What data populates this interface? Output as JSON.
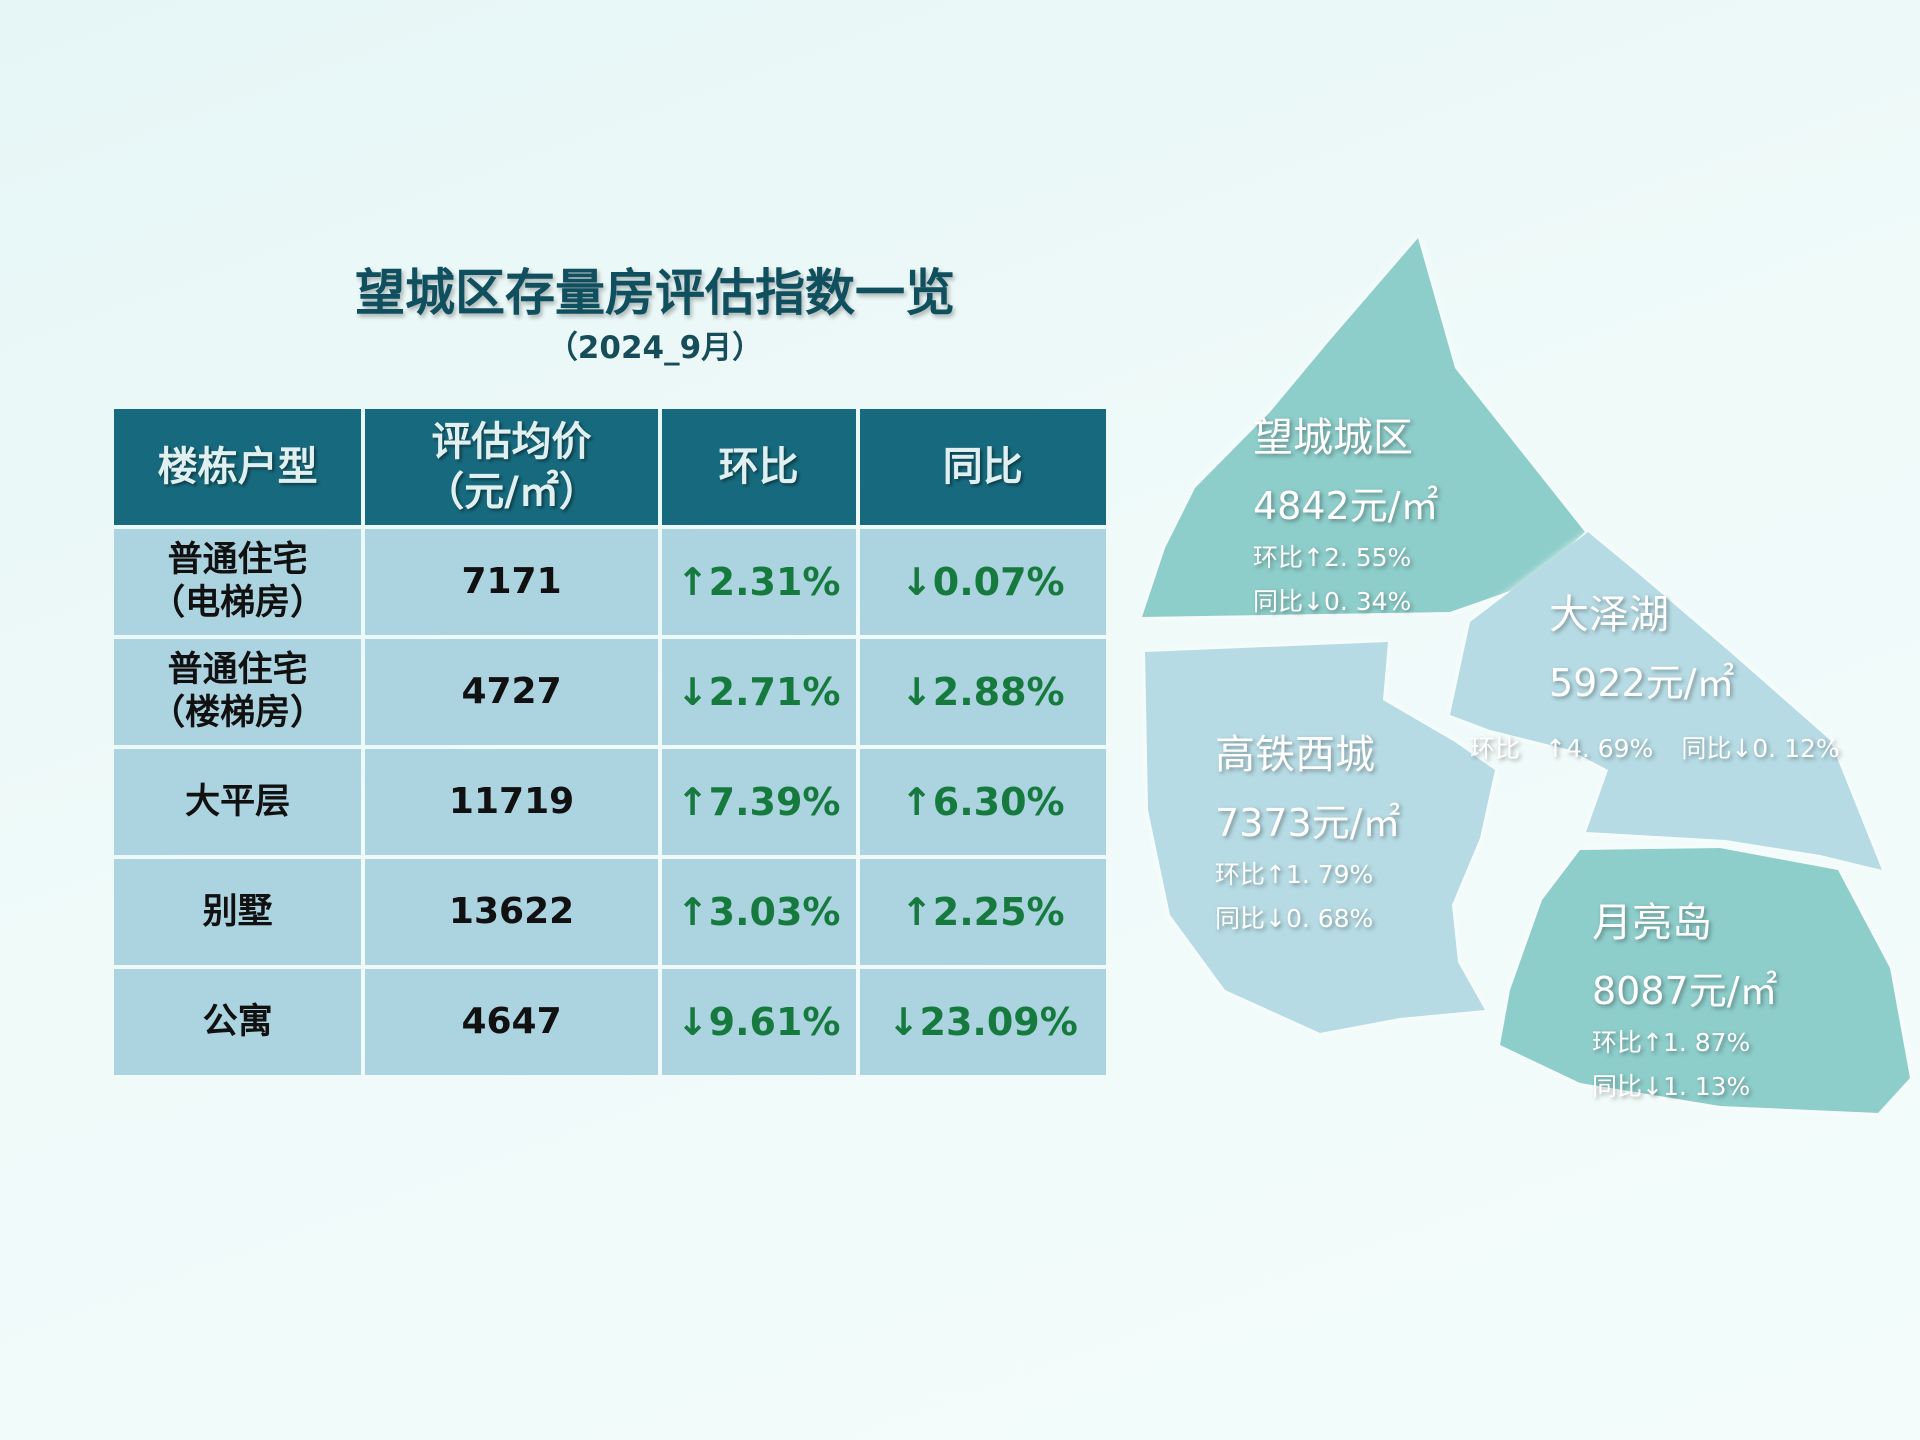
{
  "title": "望城区存量房评估指数一览",
  "subtitle": "（2024_9月）",
  "table": {
    "headers": [
      {
        "l1": "楼栋户型",
        "l2": ""
      },
      {
        "l1": "评估均价",
        "l2": "（元/㎡）"
      },
      {
        "l1": "环比",
        "l2": ""
      },
      {
        "l1": "同比",
        "l2": ""
      }
    ],
    "rows": [
      {
        "type_l1": "普通住宅",
        "type_l2": "（电梯房）",
        "price": "7171",
        "mom": "2.31%",
        "mom_dir": "up",
        "yoy": "0.07%",
        "yoy_dir": "down"
      },
      {
        "type_l1": "普通住宅",
        "type_l2": "（楼梯房）",
        "price": "4727",
        "mom": "2.71%",
        "mom_dir": "down",
        "yoy": "2.88%",
        "yoy_dir": "down"
      },
      {
        "type_l1": "大平层",
        "type_l2": "",
        "price": "11719",
        "mom": "7.39%",
        "mom_dir": "up",
        "yoy": "6.30%",
        "yoy_dir": "up"
      },
      {
        "type_l1": "别墅",
        "type_l2": "",
        "price": "13622",
        "mom": "3.03%",
        "mom_dir": "up",
        "yoy": "2.25%",
        "yoy_dir": "up"
      },
      {
        "type_l1": "公寓",
        "type_l2": "",
        "price": "4647",
        "mom": "9.61%",
        "mom_dir": "down",
        "yoy": "23.09%",
        "yoy_dir": "down"
      }
    ]
  },
  "arrows": {
    "up": "↑",
    "down": "↓"
  },
  "regions": [
    {
      "id": "wangcheng",
      "name": "望城城区",
      "price": "4842元/㎡",
      "mom": "环比↑2. 55%",
      "yoy": "同比↓0. 34%",
      "color": "#8dcdca"
    },
    {
      "id": "dazehu",
      "name": "大泽湖",
      "price": "5922元/㎡",
      "mom": "环比　↑4. 69%",
      "yoy": "同比↓0. 12%",
      "color": "#b6dbe4"
    },
    {
      "id": "gaotie",
      "name": "高铁西城",
      "price": "7373元/㎡",
      "mom": "环比↑1. 79%",
      "yoy": "同比↓0. 68%",
      "color": "#b6dbe4"
    },
    {
      "id": "yueliangdao",
      "name": "月亮岛",
      "price": "8087元/㎡",
      "mom": "环比↑1. 87%",
      "yoy": "同比↓1. 13%",
      "color": "#8dcdca"
    }
  ],
  "colors": {
    "header_bg": "#176a7e",
    "cell_bg": "#acd3e0",
    "change_text": "#167a3e",
    "title_text": "#0f4f5e"
  }
}
